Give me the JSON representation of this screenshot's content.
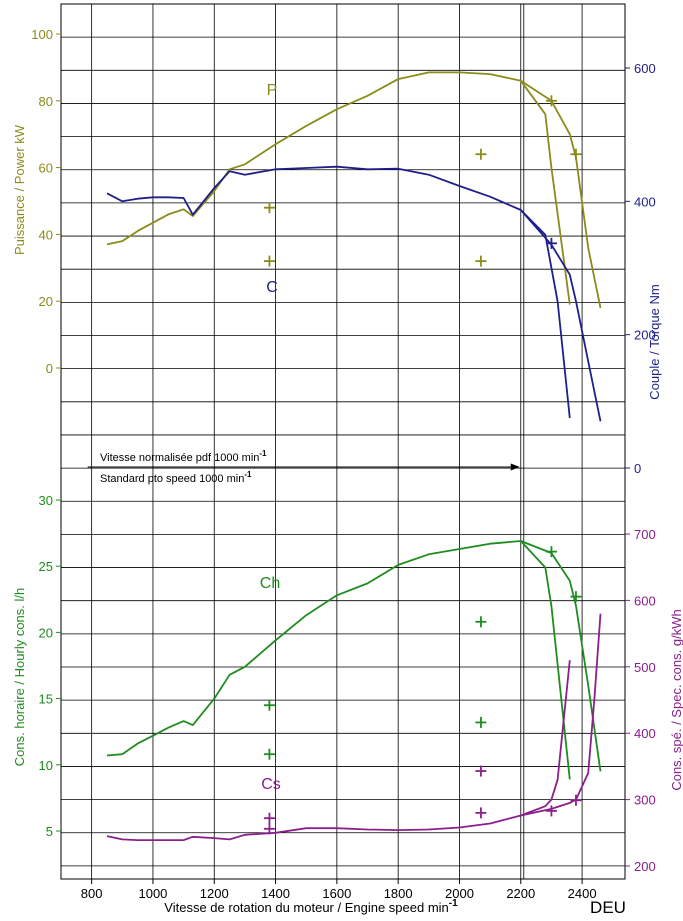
{
  "footer_label": "DEU",
  "colors": {
    "power": "#8b8b1a",
    "torque": "#1f1f8c",
    "hourly": "#1f8c1f",
    "specific": "#8b1f8b",
    "grid": "#000000"
  },
  "chart_data": [
    {
      "type": "line",
      "panel": "power",
      "ylabel": "Puissance / Power kW",
      "ylim": [
        -20,
        110
      ],
      "yticks": [
        0,
        20,
        40,
        60,
        80,
        100
      ],
      "xlabel": "",
      "xlim": [
        700,
        2540
      ],
      "series": [
        {
          "name": "P",
          "x": [
            850,
            900,
            950,
            1000,
            1050,
            1100,
            1130,
            1200,
            1250,
            1300,
            1400,
            1500,
            1600,
            1700,
            1800,
            1900,
            2000,
            2100,
            2200,
            2280,
            2300,
            2360
          ],
          "y": [
            37,
            38,
            41,
            43.5,
            46,
            47.5,
            45.5,
            53,
            59.5,
            61,
            67,
            72.5,
            77.5,
            81.5,
            86.5,
            88.5,
            88.5,
            88,
            86,
            76,
            60,
            19
          ]
        },
        {
          "name": "P",
          "x": [
            2200,
            2300,
            2360,
            2380,
            2420,
            2460
          ],
          "y": [
            86,
            80,
            70,
            63,
            36,
            18
          ]
        }
      ],
      "markers": [
        {
          "x": 1380,
          "y": 48
        },
        {
          "x": 1380,
          "y": 32
        },
        {
          "x": 2070,
          "y": 64
        },
        {
          "x": 2070,
          "y": 32
        },
        {
          "x": 2300,
          "y": 80
        },
        {
          "x": 2380,
          "y": 64
        }
      ]
    },
    {
      "type": "line",
      "panel": "torque",
      "ylabel": "Couple / Torque Nm",
      "ylim": [
        0,
        700
      ],
      "yticks": [
        0,
        200,
        400,
        600
      ],
      "xlim": [
        700,
        2540
      ],
      "series": [
        {
          "name": "C",
          "x": [
            850,
            900,
            950,
            1000,
            1050,
            1100,
            1130,
            1200,
            1250,
            1300,
            1400,
            1500,
            1600,
            1700,
            1800,
            1900,
            2000,
            2100,
            2200,
            2280,
            2320,
            2360
          ],
          "y": [
            412,
            400,
            404,
            406,
            406,
            405,
            380,
            420,
            445,
            440,
            448,
            450,
            452,
            448,
            449,
            440,
            423,
            407,
            387,
            350,
            250,
            75
          ]
        },
        {
          "name": "C",
          "x": [
            2200,
            2300,
            2360,
            2380,
            2420,
            2460
          ],
          "y": [
            387,
            335,
            290,
            250,
            160,
            70
          ]
        }
      ],
      "markers": [
        {
          "x": 2300,
          "y": 337
        }
      ]
    },
    {
      "type": "line",
      "panel": "hourly",
      "ylabel": "Cons. horaire / Hourly cons. l/h",
      "ylim": [
        3.5,
        32
      ],
      "yticks": [
        5,
        10,
        15,
        20,
        25,
        30
      ],
      "xlabel": "Vitesse de rotation du moteur / Engine speed min",
      "xlabel_sup": "-1",
      "xticks": [
        800,
        1000,
        1200,
        1400,
        1600,
        1800,
        2000,
        2200,
        2400
      ],
      "xlim": [
        700,
        2540
      ],
      "series": [
        {
          "name": "Ch",
          "x": [
            850,
            900,
            950,
            1000,
            1050,
            1100,
            1130,
            1200,
            1250,
            1300,
            1400,
            1500,
            1600,
            1700,
            1800,
            1900,
            2000,
            2100,
            2200,
            2280,
            2300,
            2360
          ],
          "y": [
            10.7,
            10.8,
            11.6,
            12.2,
            12.8,
            13.3,
            13.0,
            15.0,
            16.8,
            17.4,
            19.4,
            21.3,
            22.8,
            23.7,
            25.1,
            25.9,
            26.3,
            26.7,
            26.9,
            24.9,
            22,
            8.9
          ]
        },
        {
          "name": "Ch",
          "x": [
            2200,
            2300,
            2360,
            2380,
            2420,
            2460
          ],
          "y": [
            26.9,
            26,
            23.9,
            22,
            16,
            9.5
          ]
        }
      ],
      "markers": [
        {
          "x": 1380,
          "y": 14.5
        },
        {
          "x": 1380,
          "y": 10.8
        },
        {
          "x": 2070,
          "y": 20.8
        },
        {
          "x": 2070,
          "y": 13.2
        },
        {
          "x": 2300,
          "y": 26.1
        },
        {
          "x": 2380,
          "y": 22.7
        }
      ]
    },
    {
      "type": "line",
      "panel": "specific",
      "ylabel": "Cons. spé. / Spec. cons. g/kWh",
      "ylim": [
        200,
        700
      ],
      "yticks": [
        200,
        300,
        400,
        500,
        600,
        700
      ],
      "xlim": [
        700,
        2540
      ],
      "series": [
        {
          "name": "Cs",
          "x": [
            850,
            900,
            950,
            1000,
            1050,
            1100,
            1130,
            1200,
            1250,
            1300,
            1400,
            1500,
            1600,
            1700,
            1800,
            1900,
            2000,
            2100,
            2200,
            2280,
            2300,
            2320,
            2340,
            2360
          ],
          "y": [
            245,
            240,
            239,
            239,
            239,
            239,
            244,
            242,
            240,
            247,
            250,
            257,
            257,
            255,
            254,
            255,
            258,
            264,
            276,
            290,
            300,
            330,
            420,
            510
          ]
        },
        {
          "name": "Cs",
          "x": [
            2200,
            2300,
            2360,
            2380,
            2420,
            2440,
            2460
          ],
          "y": [
            276,
            286,
            295,
            300,
            340,
            450,
            580
          ]
        }
      ],
      "markers": [
        {
          "x": 1380,
          "y": 272
        },
        {
          "x": 1380,
          "y": 256
        },
        {
          "x": 2070,
          "y": 343
        },
        {
          "x": 2070,
          "y": 280
        },
        {
          "x": 2300,
          "y": 283
        },
        {
          "x": 2380,
          "y": 299
        }
      ]
    }
  ],
  "series_labels": {
    "P": "P",
    "C": "C",
    "Ch": "Ch",
    "Cs": "Cs"
  },
  "annotation": {
    "line1": "Vitesse normalisée pdf 1000 min",
    "line2": "Standard pto speed 1000 min",
    "sup": "-1",
    "x_from": 800,
    "x_to": 2200
  }
}
